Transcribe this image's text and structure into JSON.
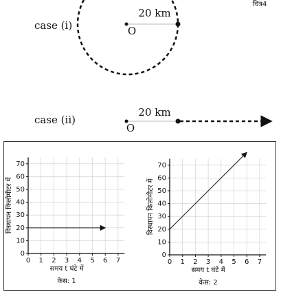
{
  "figure_label": "चित्र4",
  "cases": [
    {
      "label": "case (i)",
      "distance": "20 km",
      "origin": "O"
    },
    {
      "label": "case (ii)",
      "distance": "20 km",
      "origin": "O"
    }
  ],
  "chart_data": [
    {
      "type": "line",
      "caption": "केस: 1",
      "x_label": "समय t घंटे में",
      "y_label": "विस्थापन किलोमीटर में",
      "x": [
        0,
        6
      ],
      "values": [
        20,
        20
      ],
      "color": "#333333",
      "xlim": [
        0,
        7.5
      ],
      "ylim": [
        0,
        75
      ],
      "xticks": [
        0,
        1,
        2,
        3,
        4,
        5,
        6,
        7
      ],
      "yticks": [
        0,
        10,
        20,
        30,
        40,
        50,
        60,
        70
      ],
      "grid": true
    },
    {
      "type": "line",
      "caption": "केस: 2",
      "x_label": "समय t घंटे में",
      "y_label": "विस्थापन किलोमीटर में",
      "x": [
        0,
        6
      ],
      "values": [
        20,
        80
      ],
      "color": "#333333",
      "xlim": [
        0,
        7.5
      ],
      "ylim": [
        0,
        75
      ],
      "xticks": [
        0,
        1,
        2,
        3,
        4,
        5,
        6,
        7
      ],
      "yticks": [
        0,
        10,
        20,
        30,
        40,
        50,
        60,
        70
      ],
      "grid": true
    }
  ]
}
